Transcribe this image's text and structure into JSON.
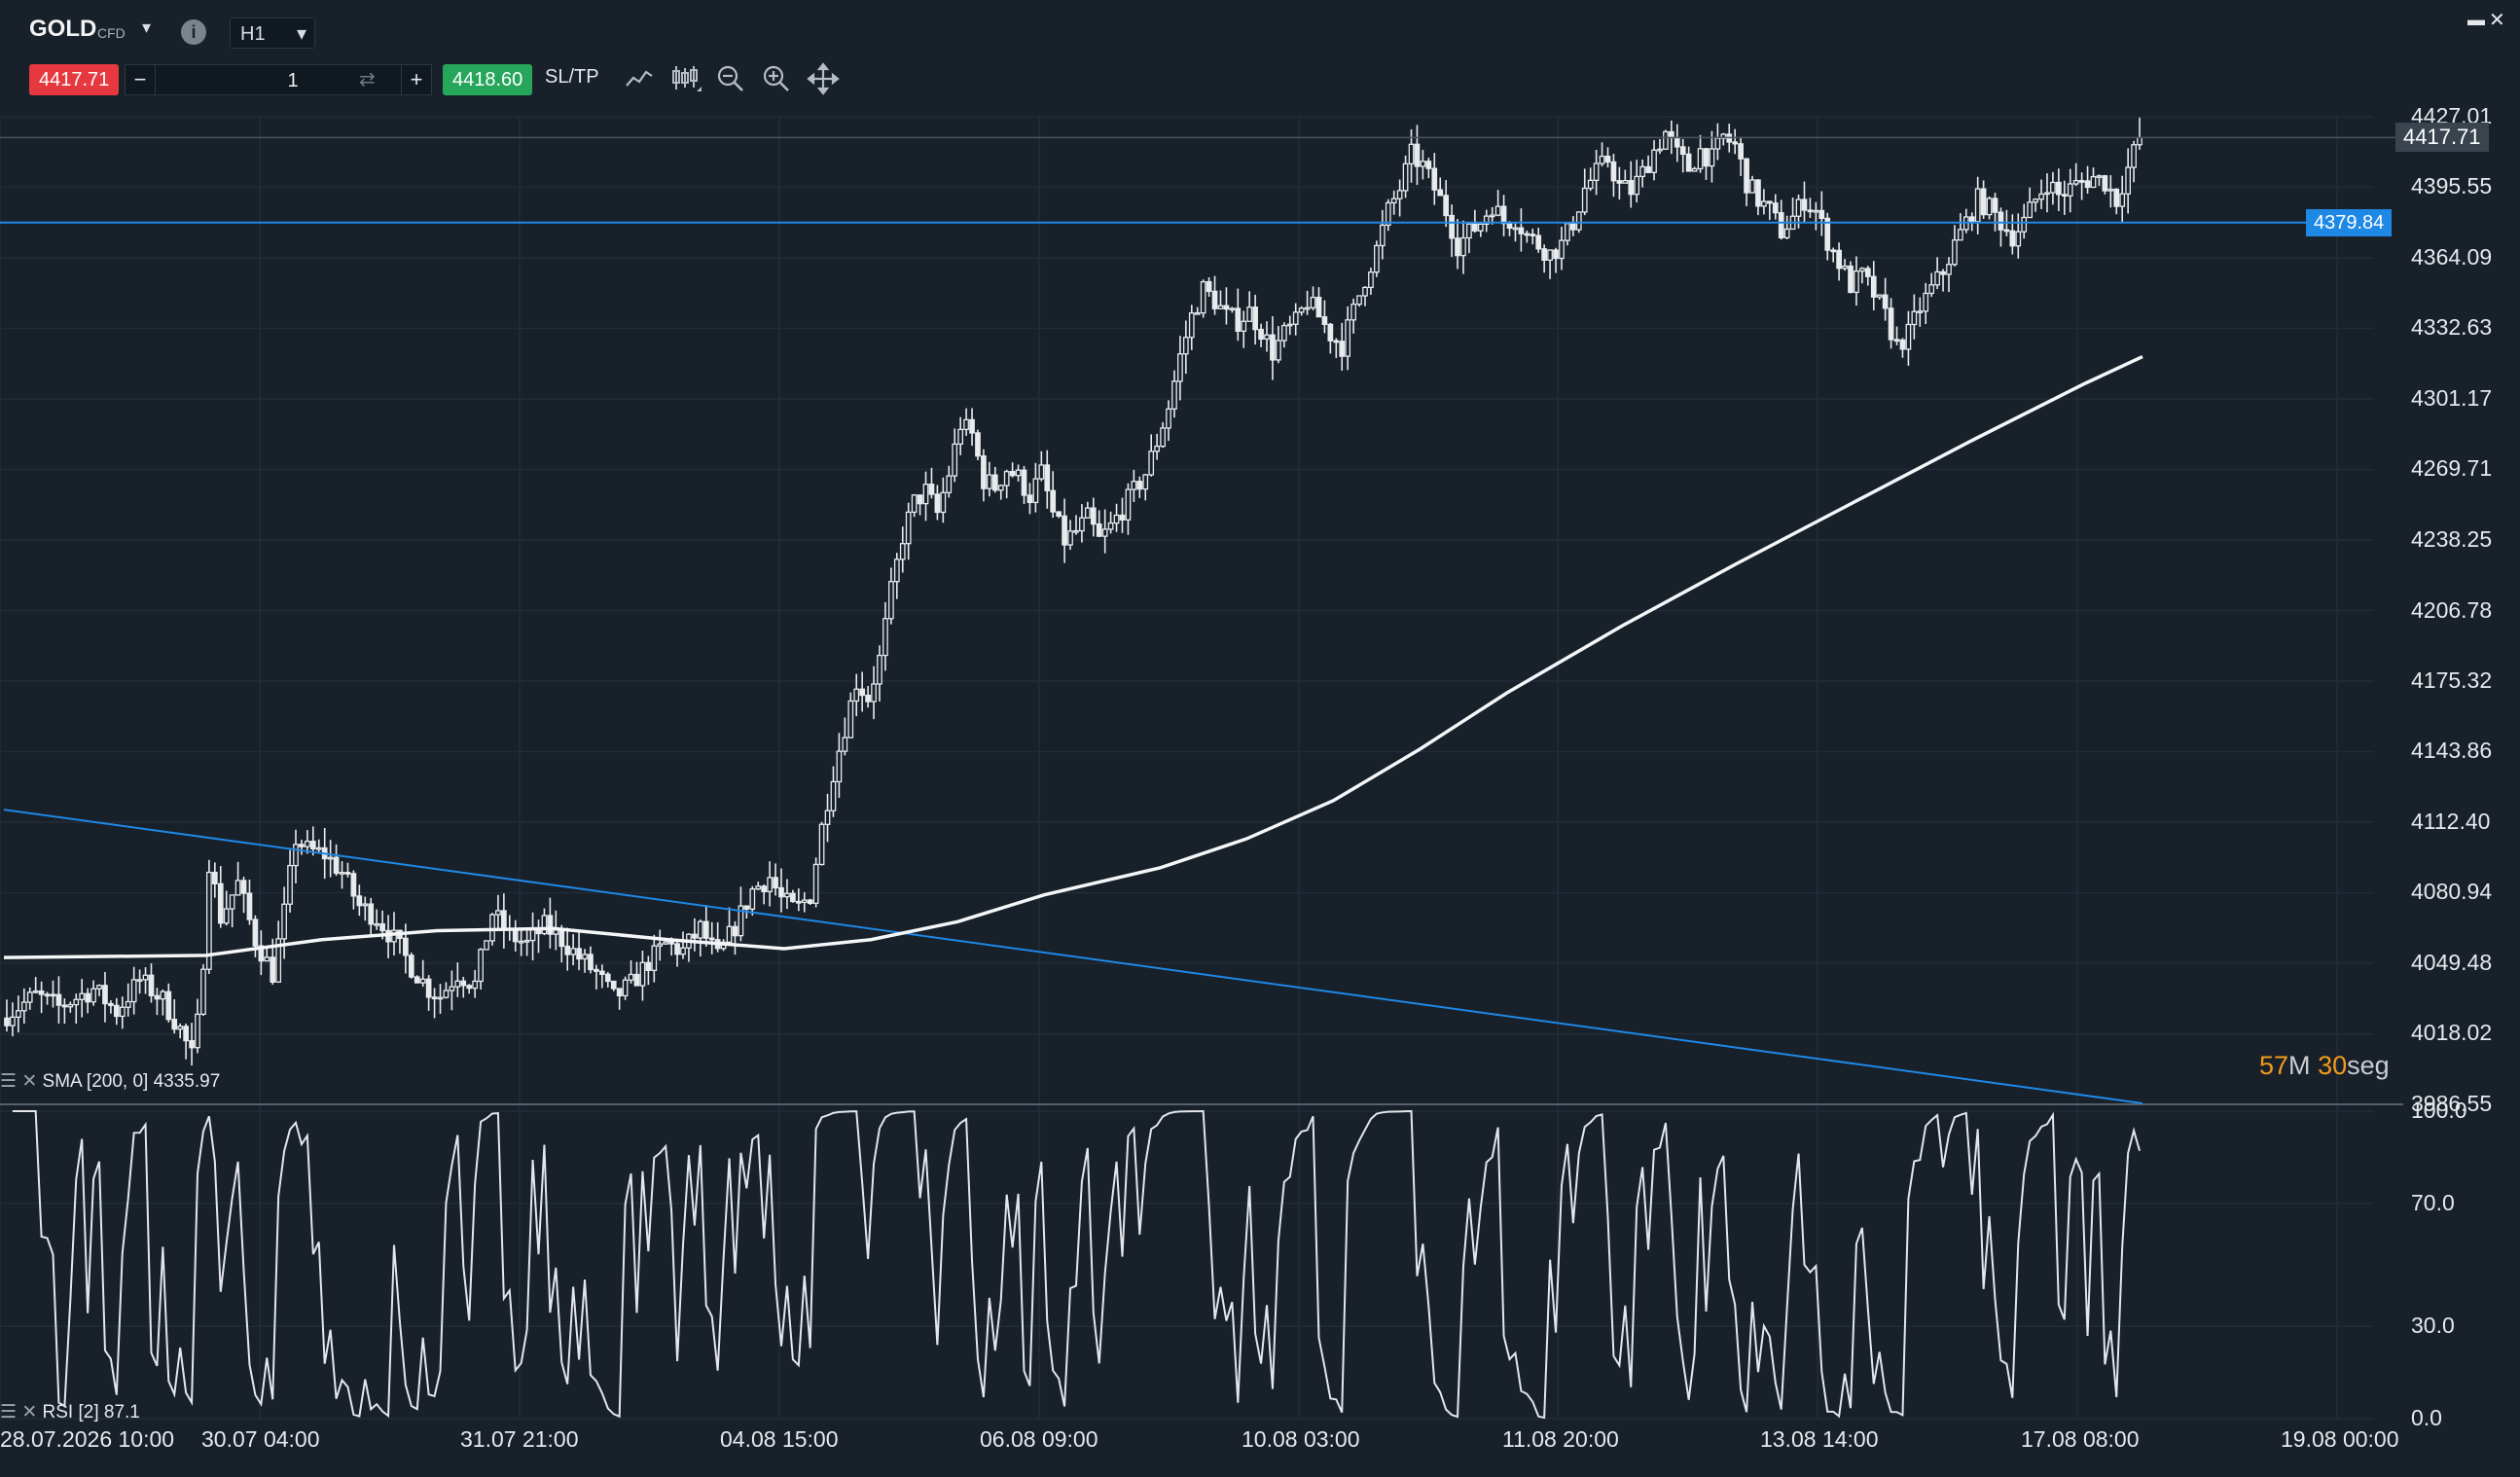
{
  "header": {
    "symbol": "GOLD",
    "symbol_type": "CFD",
    "timeframe": "H1",
    "sell_price": "4417.71",
    "buy_price": "4418.60",
    "quantity": "1",
    "qty_minus": "−",
    "qty_plus": "+",
    "sltp_label": "SL/TP",
    "info_glyph": "i",
    "window_restore": "▬",
    "window_close": "✕"
  },
  "colors": {
    "background": "#18202a",
    "grid": "#222c37",
    "candle": "#e8ebee",
    "sma": "#f4f6f8",
    "trendline": "#1e88e5",
    "sell": "#e5393f",
    "buy": "#26a65b",
    "countdown": "#f29b1b"
  },
  "price_axis": [
    "4427.01",
    "4395.55",
    "4364.09",
    "4332.63",
    "4301.17",
    "4269.71",
    "4238.25",
    "4206.78",
    "4175.32",
    "4143.86",
    "4112.40",
    "4080.94",
    "4049.48",
    "4018.02",
    "3986.55"
  ],
  "current_price_tag": "4417.71",
  "hline_tag": "4379.84",
  "rsi_axis": [
    "100.0",
    "70.0",
    "30.0",
    "0.0"
  ],
  "time_axis": [
    "28.07.2026 10:00",
    "30.07 04:00",
    "31.07 21:00",
    "04.08 15:00",
    "06.08 09:00",
    "10.08 03:00",
    "11.08 20:00",
    "13.08 14:00",
    "17.08 08:00",
    "19.08 00:00"
  ],
  "indicators": {
    "sma_label": "SMA [200, 0] 4335.97",
    "rsi_label": "RSI [2] 87.1"
  },
  "countdown": {
    "minutes": "57",
    "min_unit": "M",
    "seconds": "30",
    "sec_unit": "seg"
  },
  "chart_data": {
    "type": "candlestick",
    "symbol": "GOLD",
    "timeframe": "H1",
    "ylim": [
      3986.55,
      4427.01
    ],
    "current_price": 4417.71,
    "horizontal_line": 4379.84,
    "close_path": [
      [
        0,
        4025
      ],
      [
        12,
        4035
      ],
      [
        20,
        4030
      ],
      [
        32,
        4038
      ],
      [
        40,
        4028
      ],
      [
        48,
        4042
      ],
      [
        56,
        4033
      ],
      [
        62,
        4020
      ],
      [
        66,
        4008
      ],
      [
        69,
        4030
      ],
      [
        72,
        4095
      ],
      [
        76,
        4070
      ],
      [
        82,
        4085
      ],
      [
        88,
        4060
      ],
      [
        94,
        4045
      ],
      [
        98,
        4072
      ],
      [
        102,
        4105
      ],
      [
        106,
        4100
      ],
      [
        112,
        4098
      ],
      [
        118,
        4090
      ],
      [
        124,
        4075
      ],
      [
        130,
        4070
      ],
      [
        136,
        4060
      ],
      [
        142,
        4048
      ],
      [
        148,
        4038
      ],
      [
        152,
        4035
      ],
      [
        158,
        4045
      ],
      [
        164,
        4040
      ],
      [
        170,
        4072
      ],
      [
        176,
        4062
      ],
      [
        182,
        4058
      ],
      [
        188,
        4066
      ],
      [
        194,
        4060
      ],
      [
        200,
        4052
      ],
      [
        206,
        4045
      ],
      [
        212,
        4034
      ],
      [
        218,
        4040
      ],
      [
        224,
        4050
      ],
      [
        230,
        4058
      ],
      [
        236,
        4055
      ],
      [
        242,
        4065
      ],
      [
        248,
        4052
      ],
      [
        254,
        4066
      ],
      [
        260,
        4082
      ],
      [
        266,
        4088
      ],
      [
        270,
        4078
      ],
      [
        275,
        4073
      ],
      [
        280,
        4080
      ],
      [
        284,
        4110
      ],
      [
        288,
        4135
      ],
      [
        292,
        4155
      ],
      [
        296,
        4175
      ],
      [
        300,
        4168
      ],
      [
        304,
        4185
      ],
      [
        308,
        4215
      ],
      [
        312,
        4240
      ],
      [
        316,
        4255
      ],
      [
        320,
        4260
      ],
      [
        324,
        4250
      ],
      [
        328,
        4268
      ],
      [
        332,
        4290
      ],
      [
        336,
        4285
      ],
      [
        340,
        4265
      ],
      [
        344,
        4262
      ],
      [
        348,
        4270
      ],
      [
        352,
        4266
      ],
      [
        356,
        4258
      ],
      [
        360,
        4268
      ],
      [
        364,
        4250
      ],
      [
        368,
        4238
      ],
      [
        372,
        4242
      ],
      [
        376,
        4248
      ],
      [
        380,
        4238
      ],
      [
        384,
        4244
      ],
      [
        388,
        4252
      ],
      [
        392,
        4260
      ],
      [
        396,
        4268
      ],
      [
        400,
        4282
      ],
      [
        404,
        4298
      ],
      [
        408,
        4320
      ],
      [
        412,
        4338
      ],
      [
        416,
        4350
      ],
      [
        420,
        4345
      ],
      [
        424,
        4338
      ],
      [
        428,
        4336
      ],
      [
        432,
        4340
      ],
      [
        436,
        4332
      ],
      [
        440,
        4322
      ],
      [
        444,
        4330
      ],
      [
        448,
        4335
      ],
      [
        452,
        4345
      ],
      [
        456,
        4338
      ],
      [
        460,
        4330
      ],
      [
        464,
        4325
      ],
      [
        468,
        4340
      ],
      [
        472,
        4355
      ],
      [
        476,
        4368
      ],
      [
        480,
        4385
      ],
      [
        484,
        4395
      ],
      [
        488,
        4410
      ],
      [
        492,
        4405
      ],
      [
        496,
        4395
      ],
      [
        500,
        4385
      ],
      [
        504,
        4370
      ],
      [
        508,
        4375
      ],
      [
        512,
        4380
      ],
      [
        516,
        4388
      ],
      [
        520,
        4380
      ],
      [
        524,
        4382
      ],
      [
        528,
        4374
      ],
      [
        532,
        4370
      ],
      [
        536,
        4366
      ],
      [
        540,
        4370
      ],
      [
        544,
        4380
      ],
      [
        548,
        4395
      ],
      [
        552,
        4402
      ],
      [
        556,
        4408
      ],
      [
        560,
        4396
      ],
      [
        564,
        4394
      ],
      [
        568,
        4402
      ],
      [
        572,
        4412
      ],
      [
        576,
        4420
      ],
      [
        580,
        4410
      ],
      [
        584,
        4404
      ],
      [
        588,
        4412
      ],
      [
        592,
        4408
      ],
      [
        596,
        4418
      ],
      [
        600,
        4414
      ],
      [
        604,
        4398
      ],
      [
        608,
        4390
      ],
      [
        612,
        4385
      ],
      [
        616,
        4376
      ],
      [
        620,
        4382
      ],
      [
        624,
        4390
      ],
      [
        628,
        4385
      ],
      [
        632,
        4372
      ],
      [
        636,
        4362
      ],
      [
        640,
        4352
      ],
      [
        644,
        4356
      ],
      [
        648,
        4348
      ],
      [
        652,
        4338
      ],
      [
        656,
        4325
      ],
      [
        660,
        4330
      ],
      [
        664,
        4342
      ],
      [
        668,
        4350
      ],
      [
        672,
        4358
      ],
      [
        676,
        4370
      ],
      [
        680,
        4380
      ],
      [
        684,
        4390
      ],
      [
        688,
        4386
      ],
      [
        692,
        4380
      ],
      [
        696,
        4374
      ],
      [
        700,
        4380
      ],
      [
        704,
        4390
      ],
      [
        708,
        4398
      ],
      [
        712,
        4392
      ],
      [
        716,
        4395
      ],
      [
        720,
        4398
      ],
      [
        724,
        4400
      ],
      [
        728,
        4398
      ],
      [
        732,
        4390
      ],
      [
        736,
        4404
      ],
      [
        740,
        4418
      ]
    ],
    "sma200_path": [
      [
        0,
        4052
      ],
      [
        70,
        4053
      ],
      [
        110,
        4060
      ],
      [
        150,
        4064
      ],
      [
        190,
        4065
      ],
      [
        230,
        4060
      ],
      [
        270,
        4056
      ],
      [
        300,
        4060
      ],
      [
        330,
        4068
      ],
      [
        360,
        4080
      ],
      [
        400,
        4092
      ],
      [
        430,
        4105
      ],
      [
        460,
        4122
      ],
      [
        490,
        4145
      ],
      [
        520,
        4170
      ],
      [
        560,
        4200
      ],
      [
        600,
        4228
      ],
      [
        640,
        4255
      ],
      [
        680,
        4282
      ],
      [
        720,
        4308
      ],
      [
        740,
        4320
      ]
    ],
    "trendline": {
      "from": [
        0,
        4118
      ],
      "to": [
        740,
        3987
      ]
    },
    "rsi": {
      "period": 2,
      "last": 87.1,
      "ylim": [
        0,
        100
      ]
    },
    "indicators": [
      "SMA [200, 0] 4335.97",
      "RSI [2] 87.1"
    ]
  }
}
